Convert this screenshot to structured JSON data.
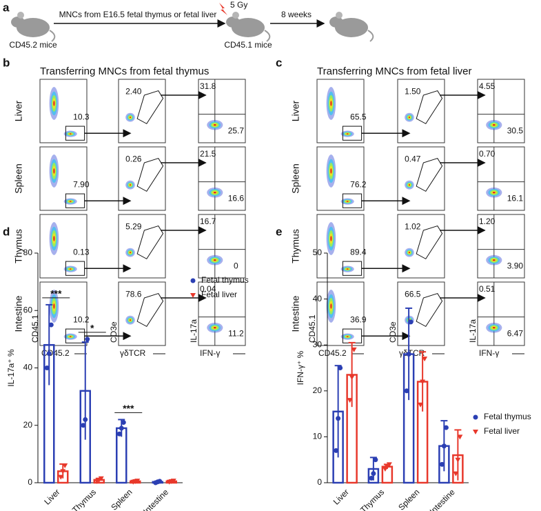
{
  "panel_a": {
    "label": "a",
    "step1": "MNCs from E16.5 fetal thymus or fetal liver",
    "dose": "5 Gy",
    "step2": "8 weeks",
    "donor": "CD45.2 mice",
    "recipient": "CD45.1 mice"
  },
  "panel_b": {
    "label": "b",
    "title": "Transferring MNCs from fetal thymus",
    "axis_labels": [
      "CD45.1",
      "CD45.2",
      "CD3e",
      "γδTCR",
      "IL-17a",
      "IFN-γ"
    ],
    "rows": [
      {
        "tissue": "Liver",
        "gates": [
          "10.3",
          "2.40",
          "31.8",
          "25.7"
        ]
      },
      {
        "tissue": "Spleen",
        "gates": [
          "7.90",
          "0.26",
          "21.5",
          "16.6"
        ]
      },
      {
        "tissue": "Thymus",
        "gates": [
          "0.13",
          "5.29",
          "16.7",
          "0"
        ]
      },
      {
        "tissue": "Intestine",
        "gates": [
          "10.2",
          "78.6",
          "0.04",
          "11.2"
        ]
      }
    ]
  },
  "panel_c": {
    "label": "c",
    "title": "Transferring MNCs from fetal liver",
    "axis_labels": [
      "CD45.1",
      "CD45.2",
      "CD3e",
      "γδTCR",
      "IL-17a",
      "IFN-γ"
    ],
    "rows": [
      {
        "tissue": "Liver",
        "gates": [
          "65.5",
          "1.50",
          "4.55",
          "30.5"
        ]
      },
      {
        "tissue": "Spleen",
        "gates": [
          "76.2",
          "0.47",
          "0.70",
          "16.1"
        ]
      },
      {
        "tissue": "Thymus",
        "gates": [
          "89.4",
          "1.02",
          "1.20",
          "3.90"
        ]
      },
      {
        "tissue": "Intestine",
        "gates": [
          "36.9",
          "66.5",
          "0.51",
          "6.47"
        ]
      }
    ]
  },
  "chart_data": [
    {
      "type": "bar",
      "panel": "d",
      "ylabel": "IL-17a⁺ %",
      "categories": [
        "Liver",
        "Thymus",
        "Spleen",
        "Intestine"
      ],
      "ylim": [
        0,
        80
      ],
      "yticks": [
        0,
        20,
        40,
        60,
        80
      ],
      "series": [
        {
          "name": "Fetal thymus",
          "color": "#2b3fb3",
          "marker": "circle",
          "values": [
            48,
            32,
            19,
            0.3
          ],
          "errors": [
            14,
            17,
            3,
            0.2
          ],
          "points": [
            [
              40,
              45,
              55
            ],
            [
              20,
              22,
              50
            ],
            [
              17,
              19,
              21
            ],
            [
              0,
              0.3,
              0.5
            ]
          ]
        },
        {
          "name": "Fetal liver",
          "color": "#e8382b",
          "marker": "triangle",
          "values": [
            4,
            1,
            0.5,
            0.5
          ],
          "errors": [
            2.5,
            0.5,
            0.3,
            0.3
          ],
          "points": [
            [
              2,
              4,
              6
            ],
            [
              0.5,
              1,
              1.5
            ],
            [
              0.3,
              0.5,
              0.7
            ],
            [
              0.3,
              0.5,
              0.7
            ]
          ]
        }
      ],
      "annotations": [
        {
          "text": "***",
          "category": "Liver"
        },
        {
          "text": "*",
          "category": "Thymus"
        },
        {
          "text": "***",
          "category": "Spleen"
        }
      ]
    },
    {
      "type": "bar",
      "panel": "e",
      "ylabel": "IFN-γ⁺ %",
      "categories": [
        "Liver",
        "Thymus",
        "Spleen",
        "Intestine"
      ],
      "ylim": [
        0,
        50
      ],
      "yticks": [
        0,
        10,
        20,
        30,
        40,
        50
      ],
      "series": [
        {
          "name": "Fetal thymus",
          "color": "#2b3fb3",
          "marker": "circle",
          "values": [
            15.5,
            3,
            28,
            8
          ],
          "errors": [
            10,
            2.5,
            10,
            5.5
          ],
          "points": [
            [
              7,
              14,
              25
            ],
            [
              1,
              2,
              5
            ],
            [
              20,
              28,
              35
            ],
            [
              4,
              8,
              12
            ]
          ]
        },
        {
          "name": "Fetal liver",
          "color": "#e8382b",
          "marker": "triangle",
          "values": [
            23.5,
            3.5,
            22,
            6
          ],
          "errors": [
            7,
            0.5,
            6.5,
            5.5
          ],
          "points": [
            [
              18,
              23,
              29
            ],
            [
              3,
              3.5,
              4
            ],
            [
              17,
              22,
              27
            ],
            [
              2,
              5,
              10
            ]
          ]
        }
      ],
      "annotations": []
    }
  ]
}
